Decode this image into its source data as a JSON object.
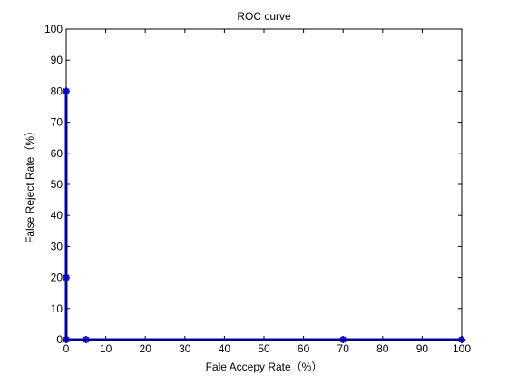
{
  "chart_data": {
    "type": "line",
    "title": "ROC curve",
    "xlabel": "Fale Accepy Rate（%）",
    "ylabel": "False Reject Rate（%）",
    "xlim": [
      0,
      100
    ],
    "ylim": [
      0,
      100
    ],
    "xticks": [
      0,
      10,
      20,
      30,
      40,
      50,
      60,
      70,
      80,
      90,
      100
    ],
    "yticks": [
      0,
      10,
      20,
      30,
      40,
      50,
      60,
      70,
      80,
      90,
      100
    ],
    "grid": false,
    "series": [
      {
        "color": "#0000ff",
        "marker": "star",
        "x": [
          0,
          0,
          0,
          5,
          70,
          100
        ],
        "y": [
          80,
          20,
          0,
          0,
          0,
          0
        ]
      }
    ]
  }
}
